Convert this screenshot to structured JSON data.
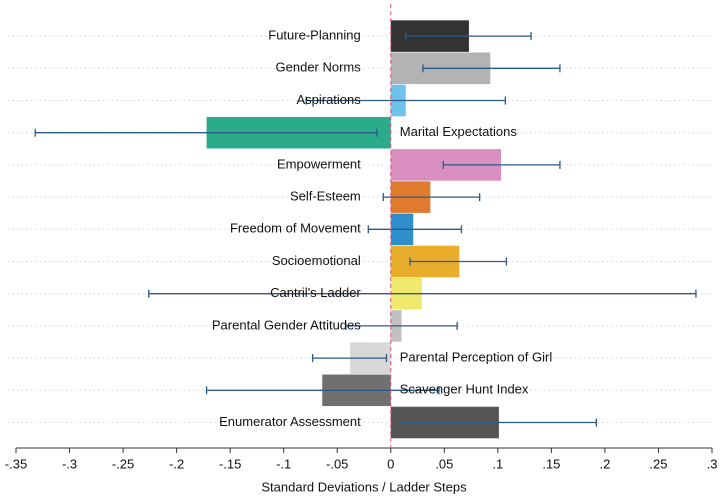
{
  "chart_data": {
    "type": "hbar_ci",
    "categories": [
      "Future-Planning",
      "Gender Norms",
      "Aspirations",
      "Marital Expectations",
      "Empowerment",
      "Self-Esteem",
      "Freedom of Movement",
      "Socioemotional",
      "Cantril's Ladder",
      "Parental Gender Attitudes",
      "Parental Perception of Girl",
      "Scavenger Hunt Index",
      "Enumerator Assessment"
    ],
    "values": [
      0.073,
      0.093,
      0.014,
      -0.172,
      0.103,
      0.037,
      0.021,
      0.064,
      0.029,
      0.01,
      -0.038,
      -0.064,
      0.101
    ],
    "ci_low": [
      0.014,
      0.03,
      -0.079,
      -0.332,
      0.049,
      -0.007,
      -0.021,
      0.018,
      -0.226,
      -0.042,
      -0.073,
      -0.172,
      0.01
    ],
    "ci_high": [
      0.131,
      0.158,
      0.107,
      -0.013,
      0.158,
      0.083,
      0.066,
      0.108,
      0.285,
      0.062,
      -0.004,
      0.045,
      0.192
    ],
    "colors": [
      "#333333",
      "#b3b3b3",
      "#6ec3ec",
      "#2aab8b",
      "#d98fc0",
      "#e07b2e",
      "#2f8fcb",
      "#e9ad2c",
      "#f1e96d",
      "#c0c0c0",
      "#d8d8d8",
      "#707070",
      "#555555"
    ],
    "error_color": "#2b5a86",
    "xlabel": "Standard Deviations / Ladder Steps",
    "xlim": [
      -0.35,
      0.3
    ],
    "xticks": [
      {
        "value": -0.35,
        "label": "-.35"
      },
      {
        "value": -0.3,
        "label": "-.3"
      },
      {
        "value": -0.25,
        "label": "-.25"
      },
      {
        "value": -0.2,
        "label": "-.2"
      },
      {
        "value": -0.15,
        "label": "-.15"
      },
      {
        "value": -0.1,
        "label": "-.1"
      },
      {
        "value": -0.05,
        "label": "-.05"
      },
      0,
      {
        "value": 0.05,
        "label": ".05"
      },
      {
        "value": 0.1,
        "label": ".1"
      },
      {
        "value": 0.15,
        "label": ".15"
      },
      {
        "value": 0.2,
        "label": ".2"
      },
      {
        "value": 0.25,
        "label": ".25"
      },
      {
        "value": 0.3,
        "label": ".3"
      }
    ],
    "refline": 0,
    "refline_color": "#d9577a",
    "grid": true
  }
}
